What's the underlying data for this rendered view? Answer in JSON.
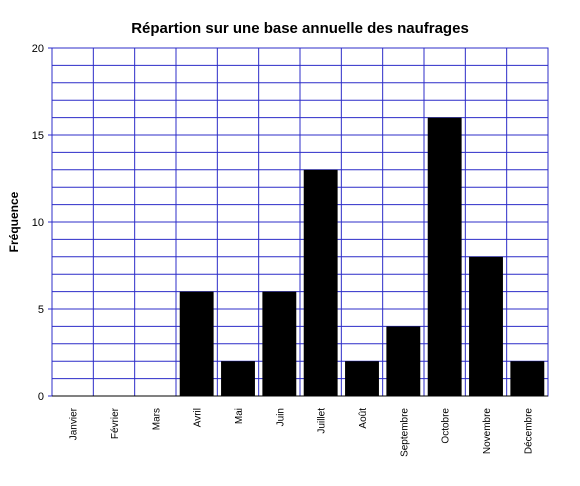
{
  "chart_data": {
    "type": "bar",
    "title": "Répartion sur une base annuelle des naufrages",
    "y_label": "Fréquence",
    "categories": [
      "Janvier",
      "Février",
      "Mars",
      "Avril",
      "Mai",
      "Juin",
      "Juillet",
      "Août",
      "Septembre",
      "Octobre",
      "Novembre",
      "Décembre"
    ],
    "values": [
      0,
      0,
      0,
      6,
      2,
      6,
      13,
      2,
      4,
      16,
      8,
      2
    ],
    "color": "#000000",
    "grid_color": "#2c2cc8",
    "ylim": [
      0,
      20
    ],
    "yticks": [
      0,
      5,
      10,
      15,
      20
    ],
    "minor_yticks": [
      1,
      2,
      3,
      4,
      6,
      7,
      8,
      9,
      11,
      12,
      13,
      14,
      16,
      17,
      18,
      19
    ],
    "grid": true
  }
}
